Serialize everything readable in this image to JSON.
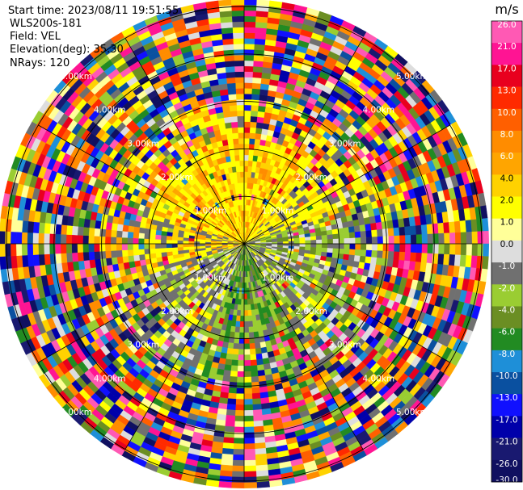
{
  "header": {
    "start_time": "Start time: 2023/08/11 19:51:55",
    "device": "WLS200s-181",
    "field": "Field: VEL",
    "elevation": "Elevation(deg): 35.30",
    "nrays": "NRays: 120"
  },
  "chart_data": {
    "type": "heatmap",
    "projection": "ppi-polar",
    "field": "VEL",
    "nrays": 120,
    "range_rings_km": [
      1.0,
      2.0,
      3.0,
      4.0,
      5.0
    ],
    "ring_labels": [
      "1.00km",
      "2.00km",
      "3.00km",
      "4.00km",
      "5.00km"
    ],
    "azimuth_spokes_deg": [
      0,
      30,
      60,
      90,
      120,
      150,
      180,
      210,
      240,
      270,
      300,
      330
    ],
    "colorbar": {
      "unit": "m/s",
      "ticks": [
        "26.0",
        "21.0",
        "17.0",
        "13.0",
        "10.0",
        "8.0",
        "6.0",
        "4.0",
        "2.0",
        "1.0",
        "0.0",
        "-1.0",
        "-2.0",
        "-4.0",
        "-6.0",
        "-8.0",
        "-10.0",
        "-13.0",
        "-17.0",
        "-21.0",
        "-26.0",
        "-30.0"
      ],
      "colors": [
        "#ff59b4",
        "#ff1493",
        "#e8001e",
        "#ff2a00",
        "#ff5f00",
        "#ff8c00",
        "#ffa500",
        "#ffd200",
        "#ffff00",
        "#ffff99",
        "#dddddd",
        "#707070",
        "#9acd32",
        "#6b8e23",
        "#228b22",
        "#1e8fd8",
        "#0a50a0",
        "#1010ff",
        "#0000aa",
        "#191970",
        "#101060"
      ]
    },
    "pattern": {
      "inner_km": 2.0,
      "northwest": "yellow / orange (positive, 2 to 8 m/s)",
      "northeast": "yellow (2 to 4 m/s)",
      "east_south": "grey / olive green (0 to -4 m/s)",
      "southwest": "grey with yellow (0 to 2 m/s)",
      "outer": "noisy multicolour"
    }
  }
}
